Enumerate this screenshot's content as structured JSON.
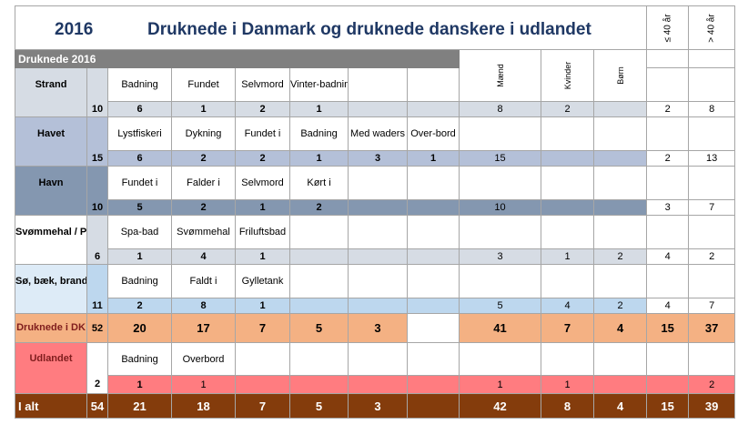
{
  "header": {
    "year": "2016",
    "title": "Druknede i Danmark og druknede danskere i udlandet",
    "col_le40": "≤ 40 år",
    "col_gt40": "> 40 år"
  },
  "section": {
    "label": "Druknede 2016"
  },
  "gender_headers": {
    "men": "Mænd",
    "women": "Kvinder",
    "children": "Børn"
  },
  "colors": {
    "strand_label": "#d6dce4",
    "strand_row": "#d6dce4",
    "havet_label": "#b4c0d8",
    "havet_row": "#b4c0d8",
    "havn_label": "#8497b0",
    "havn_row": "#8497b0",
    "pool_label": "#ffffff",
    "pool_row": "#d6dce4",
    "soe_label": "#ddebf7",
    "soe_row": "#bdd7ee",
    "dk_row": "#f4b183",
    "udland_label": "#ff7c80",
    "udland_row": "#ff7c80",
    "total_row": "#843c0c",
    "section_bar": "#808080"
  },
  "rows": [
    {
      "key": "strand",
      "label": "Strand",
      "count": "10",
      "causes": [
        "Badning",
        "Fundet",
        "Selvmord",
        "Vinter-badning",
        "",
        ""
      ],
      "values": [
        "6",
        "1",
        "2",
        "1",
        "",
        ""
      ],
      "men": "8",
      "women": "2",
      "children": "",
      "le40": "2",
      "gt40": "8"
    },
    {
      "key": "havet",
      "label": "Havet",
      "count": "15",
      "causes": [
        "Lystfiskeri",
        "Dykning",
        "Fundet i",
        "Badning",
        "Med waders",
        "Over-bord"
      ],
      "values": [
        "6",
        "2",
        "2",
        "1",
        "3",
        "1"
      ],
      "men": "15",
      "women": "",
      "children": "",
      "le40": "2",
      "gt40": "13"
    },
    {
      "key": "havn",
      "label": "Havn",
      "count": "10",
      "causes": [
        "Fundet i",
        "Falder i",
        "Selvmord",
        "Kørt i",
        "",
        ""
      ],
      "values": [
        "5",
        "2",
        "1",
        "2",
        "",
        ""
      ],
      "men": "10",
      "women": "",
      "children": "",
      "le40": "3",
      "gt40": "7"
    },
    {
      "key": "pool",
      "label": "Svømmehal / Pool",
      "count": "6",
      "causes": [
        "Spa-bad",
        "Svømmehal",
        "Friluftsbad",
        "",
        "",
        ""
      ],
      "values": [
        "1",
        "4",
        "1",
        "",
        "",
        ""
      ],
      "men": "3",
      "women": "1",
      "children": "2",
      "le40": "4",
      "gt40": "2"
    },
    {
      "key": "soe",
      "label": "Sø, bæk, branddam",
      "count": "11",
      "causes": [
        "Badning",
        "Faldt i",
        "Gylletank",
        "",
        "",
        ""
      ],
      "values": [
        "2",
        "8",
        "1",
        "",
        "",
        ""
      ],
      "men": "5",
      "women": "4",
      "children": "2",
      "le40": "4",
      "gt40": "7"
    }
  ],
  "dk_total": {
    "label": "Druknede i DK",
    "count": "52",
    "values": [
      "20",
      "17",
      "7",
      "5",
      "3",
      ""
    ],
    "men": "41",
    "women": "7",
    "children": "4",
    "le40": "15",
    "gt40": "37"
  },
  "udland": {
    "label": "Udlandet",
    "count": "2",
    "causes": [
      "Badning",
      "Overbord",
      "",
      "",
      "",
      ""
    ],
    "values": [
      "1",
      "1",
      "",
      "",
      "",
      ""
    ],
    "men": "1",
    "women": "1",
    "children": "",
    "le40": "",
    "gt40": "2"
  },
  "grand_total": {
    "label": "I alt",
    "count": "54",
    "values": [
      "21",
      "18",
      "7",
      "5",
      "3",
      ""
    ],
    "men": "42",
    "women": "8",
    "children": "4",
    "le40": "15",
    "gt40": "39"
  }
}
